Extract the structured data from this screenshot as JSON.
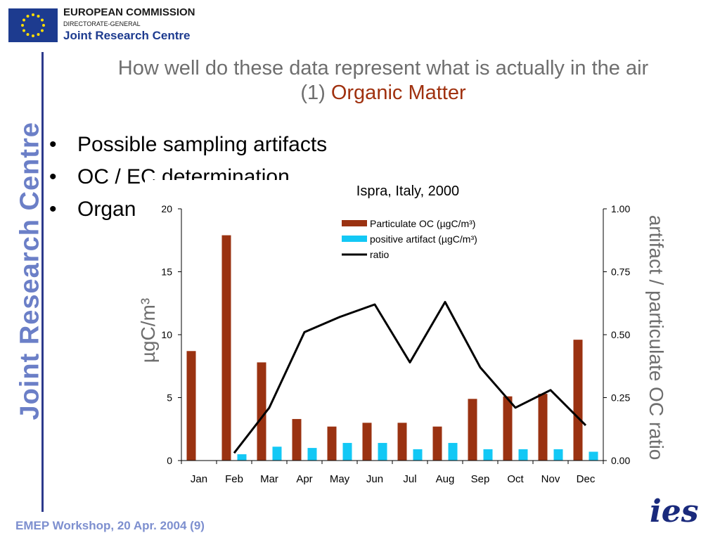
{
  "header": {
    "org_line1": "EUROPEAN COMMISSION",
    "org_line2": "DIRECTORATE-GENERAL",
    "org_line3": "Joint Research Centre",
    "side_text": "Joint Research Centre"
  },
  "slide": {
    "title_line1": "How well do these data represent what is actually in the air",
    "title_line2_prefix": "(1) ",
    "title_line2_accent": "Organic Matter",
    "bullets": [
      "Possible sampling artifacts",
      "OC / EC determination",
      "Organ"
    ]
  },
  "footer": {
    "text": "EMEP Workshop, 20 Apr. 2004   (9)",
    "logo_text": "ies"
  },
  "colors": {
    "oc": "#9a3211",
    "artifact": "#13c8f5",
    "ratio": "#000000",
    "accent": "#a0310f",
    "axis_title": "#6e6e6e"
  },
  "chart_data": {
    "type": "bar",
    "title": "Ispra, Italy, 2000",
    "categories": [
      "Jan",
      "Feb",
      "Mar",
      "Apr",
      "May",
      "Jun",
      "Jul",
      "Aug",
      "Sep",
      "Oct",
      "Nov",
      "Dec"
    ],
    "series": [
      {
        "name": "Particulate OC (µgC/m³)",
        "type": "bar",
        "axis": "left",
        "values": [
          8.7,
          17.9,
          7.8,
          3.3,
          2.7,
          3.0,
          3.0,
          2.7,
          4.9,
          5.1,
          5.3,
          9.6
        ]
      },
      {
        "name": "positive artifact (µgC/m³)",
        "type": "bar",
        "axis": "left",
        "values": [
          null,
          0.5,
          1.1,
          1.0,
          1.4,
          1.4,
          0.9,
          1.4,
          0.9,
          0.9,
          0.9,
          0.7
        ]
      },
      {
        "name": "ratio",
        "type": "line",
        "axis": "right",
        "values": [
          null,
          0.03,
          0.21,
          0.51,
          0.57,
          0.62,
          0.39,
          0.63,
          0.37,
          0.21,
          0.28,
          0.14
        ]
      }
    ],
    "ylabel_left": "µgC/m³",
    "ylabel_right": "artifact / particulate OC ratio",
    "ylim_left": [
      0,
      20
    ],
    "ylim_right": [
      0,
      1.0
    ],
    "yticks_left": [
      "0",
      "5",
      "10",
      "15",
      "20"
    ],
    "yticks_right": [
      "0.00",
      "0.25",
      "0.50",
      "0.75",
      "1.00"
    ],
    "legend_position": "top-right",
    "grid": false
  }
}
